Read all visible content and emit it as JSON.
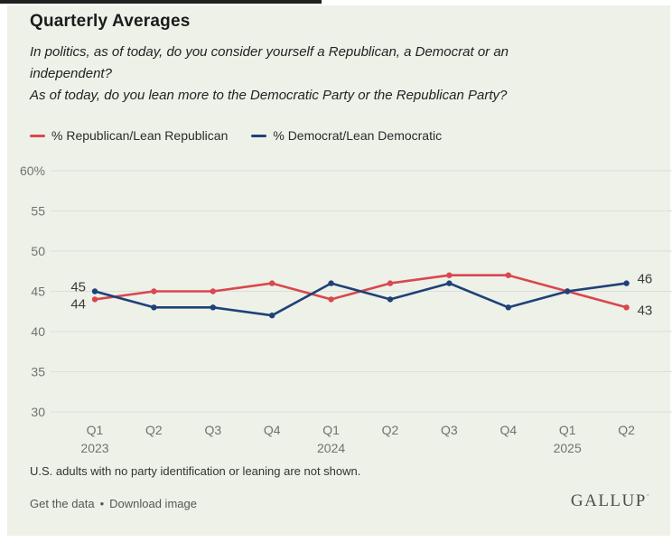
{
  "header": {
    "title": "Quarterly Averages",
    "subtitle_lines": [
      "In politics, as of today, do you consider yourself a Republican, a Democrat or an",
      "independent?",
      "As of today, do you lean more to the Democratic Party or the Republican Party?"
    ]
  },
  "colors": {
    "card_background": "#edf1e8",
    "republican_red": "#d9474f",
    "democrat_blue": "#1f4178",
    "gridline": "#dde0d8",
    "axis_text": "#6f736e",
    "point_label_text": "#3a3a3a"
  },
  "chart_data": {
    "type": "line",
    "title": "Quarterly Averages",
    "categories": [
      "Q1",
      "Q2",
      "Q3",
      "Q4",
      "Q1",
      "Q2",
      "Q3",
      "Q4",
      "Q1",
      "Q2"
    ],
    "year_labels": [
      {
        "index": 0,
        "label": "2023"
      },
      {
        "index": 4,
        "label": "2024"
      },
      {
        "index": 8,
        "label": "2025"
      }
    ],
    "ylim": [
      30,
      60
    ],
    "ytick_values": [
      60,
      55,
      50,
      45,
      40,
      35,
      30
    ],
    "ytick_labels": [
      "60%",
      "55",
      "50",
      "45",
      "40",
      "35",
      "30"
    ],
    "grid": "horizontal",
    "legend_position": "top-left",
    "series": [
      {
        "name": "% Republican/Lean Republican",
        "color": "#d9474f",
        "values": [
          44,
          45,
          45,
          46,
          44,
          46,
          47,
          47,
          45,
          43
        ],
        "first_label": "44",
        "last_label": "43"
      },
      {
        "name": "% Democrat/Lean Democratic",
        "color": "#1f4178",
        "values": [
          45,
          43,
          43,
          42,
          46,
          44,
          46,
          43,
          45,
          46
        ],
        "first_label": "45",
        "last_label": "46"
      }
    ]
  },
  "footer": {
    "footnote": "U.S. adults with no party identification or leaning are not shown.",
    "get_data_link": "Get the data",
    "separator": "•",
    "download_link": "Download image",
    "logo_text": "GALLUP",
    "logo_mark": "’"
  }
}
